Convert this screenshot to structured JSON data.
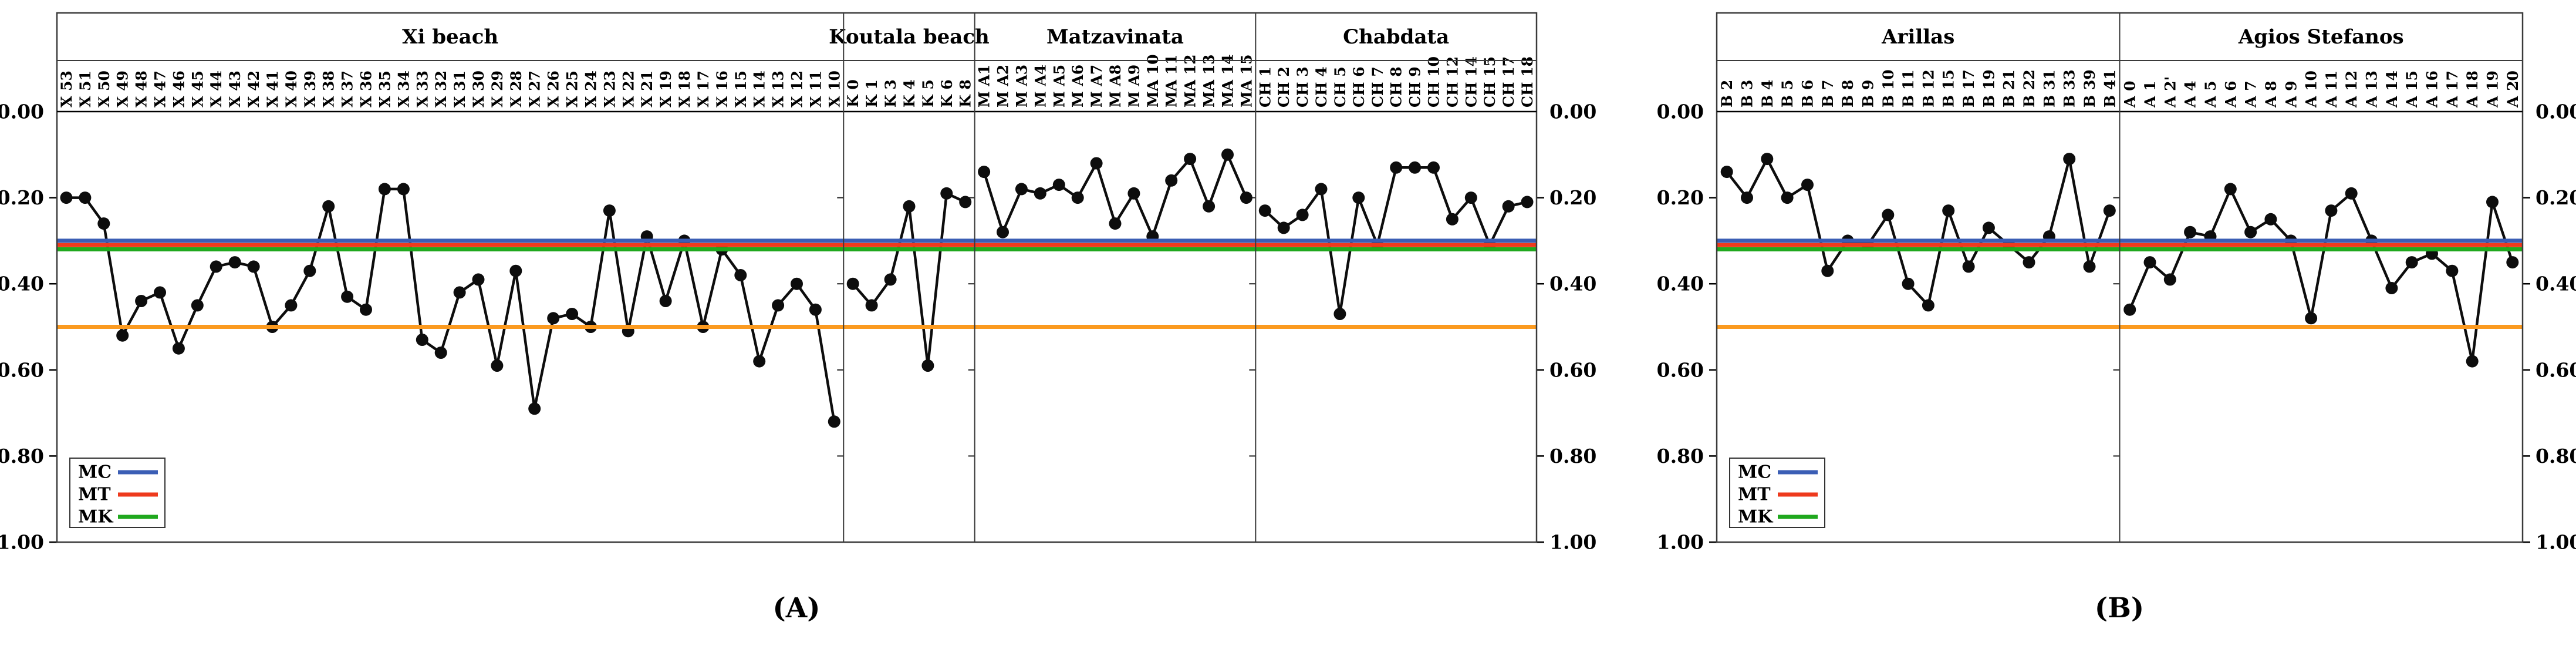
{
  "figure": {
    "background": "#ffffff",
    "caption_a": "(A)",
    "caption_b": "(B)"
  },
  "colors": {
    "series": "#0d0d0d",
    "mc_blue": "#3B5EB5",
    "mt_red": "#EE3A1D",
    "mk_green": "#20A81E",
    "threshold_orange": "#FB9A20",
    "frame": "#3a3a3a"
  },
  "chart_data": [
    {
      "type": "line",
      "caption": "(A)",
      "y_inverted": true,
      "ylim": [
        0.0,
        1.0
      ],
      "yticks": [
        0.0,
        0.2,
        0.4,
        0.6,
        0.8,
        1.0
      ],
      "ytick_labels": [
        "0.00",
        "0.20",
        "0.40",
        "0.60",
        "0.80",
        "1.00"
      ],
      "grid": false,
      "legend_position": "bottom-left",
      "legend": [
        {
          "label": "MC",
          "color": "#3B5EB5"
        },
        {
          "label": "MT",
          "color": "#EE3A1D"
        },
        {
          "label": "MK",
          "color": "#20A81E"
        }
      ],
      "ref_lines": [
        {
          "label": "MC",
          "value": 0.3,
          "color": "#3B5EB5"
        },
        {
          "label": "MT",
          "value": 0.31,
          "color": "#EE3A1D"
        },
        {
          "label": "MK",
          "value": 0.32,
          "color": "#20A81E"
        },
        {
          "label": "",
          "value": 0.5,
          "color": "#FB9A20"
        }
      ],
      "sections": [
        {
          "title": "Xi beach",
          "categories": [
            "X 53",
            "X 51",
            "X 50",
            "X 49",
            "X 48",
            "X 47",
            "X 46",
            "X 45",
            "X 44",
            "X 43",
            "X 42",
            "X 41",
            "X 40",
            "X 39",
            "X 38",
            "X 37",
            "X 36",
            "X 35",
            "X 34",
            "X 33",
            "X 32",
            "X 31",
            "X 30",
            "X 29",
            "X 28",
            "X 27",
            "X 26",
            "X 25",
            "X 24",
            "X 23",
            "X 22",
            "X 21",
            "X 19",
            "X 18",
            "X 17",
            "X 16",
            "X 15",
            "X 14",
            "X 13",
            "X 12",
            "X 11",
            "X 10"
          ],
          "values": [
            0.2,
            0.2,
            0.26,
            0.52,
            0.44,
            0.42,
            0.55,
            0.45,
            0.36,
            0.35,
            0.36,
            0.5,
            0.45,
            0.37,
            0.22,
            0.43,
            0.46,
            0.18,
            0.18,
            0.53,
            0.56,
            0.42,
            0.39,
            0.59,
            0.37,
            0.69,
            0.48,
            0.47,
            0.5,
            0.23,
            0.51,
            0.29,
            0.44,
            0.3,
            0.5,
            0.32,
            0.38,
            0.58,
            0.45,
            0.4,
            0.46,
            0.72
          ]
        },
        {
          "title": "Koutala beach",
          "categories": [
            "K 0",
            "K 1",
            "K 3",
            "K 4",
            "K 5",
            "K 6",
            "K 8"
          ],
          "values": [
            0.4,
            0.45,
            0.39,
            0.22,
            0.59,
            0.19,
            0.21
          ]
        },
        {
          "title": "Matzavinata",
          "categories": [
            "M A1",
            "M A2",
            "M A3",
            "M A4",
            "M A5",
            "M A6",
            "M A7",
            "M A8",
            "M A9",
            "MA 10",
            "MA 11",
            "MA 12",
            "MA 13",
            "MA 14",
            "MA 15"
          ],
          "values": [
            0.14,
            0.28,
            0.18,
            0.19,
            0.17,
            0.2,
            0.12,
            0.26,
            0.19,
            0.29,
            0.16,
            0.11,
            0.22,
            0.1,
            0.2
          ]
        },
        {
          "title": "Chabdata",
          "categories": [
            "CH 1",
            "CH 2",
            "CH 3",
            "CH 4",
            "CH 5",
            "CH 6",
            "CH 7",
            "CH 8",
            "CH 9",
            "CH 10",
            "CH 12",
            "CH 14",
            "CH 15",
            "CH 17",
            "CH 18"
          ],
          "values": [
            0.23,
            0.27,
            0.24,
            0.18,
            0.47,
            0.2,
            0.31,
            0.13,
            0.13,
            0.13,
            0.25,
            0.2,
            0.31,
            0.22,
            0.21
          ]
        }
      ]
    },
    {
      "type": "line",
      "caption": "(B)",
      "y_inverted": true,
      "ylim": [
        0.0,
        1.0
      ],
      "yticks": [
        0.0,
        0.2,
        0.4,
        0.6,
        0.8,
        1.0
      ],
      "ytick_labels": [
        "0.00",
        "0.20",
        "0.40",
        "0.60",
        "0.80",
        "1.00"
      ],
      "grid": false,
      "legend_position": "bottom-left",
      "legend": [
        {
          "label": "MC",
          "color": "#3B5EB5"
        },
        {
          "label": "MT",
          "color": "#EE3A1D"
        },
        {
          "label": "MK",
          "color": "#20A81E"
        }
      ],
      "ref_lines": [
        {
          "label": "MC",
          "value": 0.3,
          "color": "#3B5EB5"
        },
        {
          "label": "MT",
          "value": 0.31,
          "color": "#EE3A1D"
        },
        {
          "label": "MK",
          "value": 0.32,
          "color": "#20A81E"
        },
        {
          "label": "",
          "value": 0.5,
          "color": "#FB9A20"
        }
      ],
      "sections": [
        {
          "title": "Arillas",
          "categories": [
            "B 2",
            "B 3",
            "B 4",
            "B 5",
            "B 6",
            "B 7",
            "B 8",
            "B 9",
            "B 10",
            "B 11",
            "B 12",
            "B 15",
            "B 17",
            "B 19",
            "B 21",
            "B 22",
            "B 31",
            "B 33",
            "B 39",
            "B 41"
          ],
          "values": [
            0.14,
            0.2,
            0.11,
            0.2,
            0.17,
            0.37,
            0.3,
            0.31,
            0.24,
            0.4,
            0.45,
            0.23,
            0.36,
            0.27,
            0.31,
            0.35,
            0.29,
            0.11,
            0.36,
            0.23
          ]
        },
        {
          "title": "Agios Stefanos",
          "categories": [
            "A 0",
            "A 1",
            "A 2'",
            "A 4",
            "A 5",
            "A 6",
            "A 7",
            "A 8",
            "A 9",
            "A 10",
            "A 11",
            "A 12",
            "A 13",
            "A 14",
            "A 15",
            "A 16",
            "A 17",
            "A 18",
            "A 19",
            "A 20"
          ],
          "values": [
            0.46,
            0.35,
            0.39,
            0.28,
            0.29,
            0.18,
            0.28,
            0.25,
            0.3,
            0.48,
            0.23,
            0.19,
            0.3,
            0.41,
            0.35,
            0.33,
            0.37,
            0.58,
            0.21,
            0.35
          ]
        }
      ]
    }
  ]
}
